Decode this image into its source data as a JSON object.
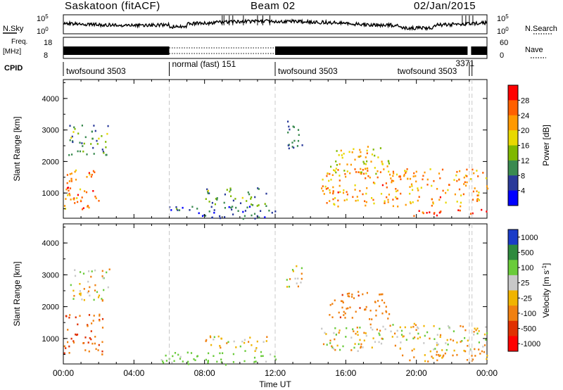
{
  "header": {
    "station": "Saskatoon (fitACF)",
    "beam": "Beam 02",
    "date": "02/Jan/2015"
  },
  "chart_data": [
    {
      "type": "line",
      "name_label": "N.Sky",
      "right_label": "N.Search",
      "left_ticks": [
        "10^5",
        "10^0"
      ],
      "right_ticks": [
        "10^5",
        "10^0"
      ],
      "description_note": ""
    },
    {
      "type": "line",
      "name_label": "Freq. [MHz]",
      "right_label": "Nave",
      "left_ticks": [
        "18",
        "8"
      ],
      "right_ticks": [
        "60",
        "0"
      ]
    },
    {
      "type": "table",
      "name_label": "CPID",
      "segments": [
        {
          "start": "00:00",
          "end": "06:00",
          "label": "twofsound 3503"
        },
        {
          "start": "06:00",
          "end": "12:00",
          "label": "normal (fast) 151"
        },
        {
          "start": "12:00",
          "end": "19:00",
          "label": "twofsound 3503"
        },
        {
          "start": "19:00",
          "end": "23:00",
          "label": "twofsound 3503"
        },
        {
          "start": "22:55",
          "end": "23:15",
          "label": "3371"
        }
      ]
    },
    {
      "type": "heatmap",
      "title": "Power [dB]",
      "ylabel": "Slant Range [km]",
      "xlabel": "Time UT",
      "ylim": [
        200,
        4600
      ],
      "y_ticks": [
        1000,
        2000,
        3000,
        4000
      ],
      "x_ticks": [
        "00:00",
        "04:00",
        "08:00",
        "12:00",
        "16:00",
        "20:00",
        "00:00"
      ],
      "colorbar_ticks": [
        "28",
        "24",
        "20",
        "16",
        "12",
        "8",
        "4"
      ],
      "colorbar_colors": [
        "#ff0000",
        "#ff6000",
        "#ff9900",
        "#e8d800",
        "#7fb800",
        "#3a8a50",
        "#2a3a9a",
        "#0000ff"
      ],
      "regions": [
        {
          "t0": 0.0,
          "t1": 2.2,
          "r0": 500,
          "r1": 1800,
          "level": 24
        },
        {
          "t0": 0.2,
          "t1": 2.6,
          "r0": 2200,
          "r1": 3200,
          "level": 10
        },
        {
          "t0": 5.5,
          "t1": 12.0,
          "r0": 200,
          "r1": 600,
          "level": 6
        },
        {
          "t0": 8.0,
          "t1": 11.5,
          "r0": 600,
          "r1": 1200,
          "level": 10
        },
        {
          "t0": 12.5,
          "t1": 13.5,
          "r0": 2400,
          "r1": 3400,
          "level": 6
        },
        {
          "t0": 14.5,
          "t1": 24.0,
          "r0": 600,
          "r1": 1800,
          "level": 22
        },
        {
          "t0": 15.0,
          "t1": 18.5,
          "r0": 1600,
          "r1": 2500,
          "level": 18
        },
        {
          "t0": 19.0,
          "t1": 24.0,
          "r0": 300,
          "r1": 500,
          "level": 28
        }
      ]
    },
    {
      "type": "heatmap",
      "title": "Velocity [m s^-1]",
      "ylabel": "Slant Range [km]",
      "xlabel": "Time UT",
      "ylim": [
        200,
        4600
      ],
      "y_ticks": [
        1000,
        2000,
        3000,
        4000
      ],
      "x_ticks": [
        "00:00",
        "04:00",
        "08:00",
        "12:00",
        "16:00",
        "20:00",
        "00:00"
      ],
      "colorbar_ticks": [
        "1000",
        "500",
        "100",
        "25",
        "-25",
        "-100",
        "-500",
        "-1000"
      ],
      "colorbar_colors": [
        "#1a3cc8",
        "#2e8a3e",
        "#6acb3a",
        "#c8c8c8",
        "#f0b400",
        "#f08010",
        "#e03000",
        "#ff0000"
      ],
      "regions": [
        {
          "t0": 0.0,
          "t1": 2.2,
          "r0": 500,
          "r1": 1800,
          "level": -300
        },
        {
          "t0": 0.3,
          "t1": 2.6,
          "r0": 2200,
          "r1": 3200,
          "level": 0
        },
        {
          "t0": 5.5,
          "t1": 12.0,
          "r0": 200,
          "r1": 600,
          "level": 150
        },
        {
          "t0": 8.0,
          "t1": 11.5,
          "r0": 600,
          "r1": 1100,
          "level": 0
        },
        {
          "t0": 12.5,
          "t1": 13.5,
          "r0": 2600,
          "r1": 3400,
          "level": 0
        },
        {
          "t0": 14.5,
          "t1": 24.0,
          "r0": 600,
          "r1": 1500,
          "level": 0
        },
        {
          "t0": 15.0,
          "t1": 18.5,
          "r0": 1600,
          "r1": 2500,
          "level": -200
        },
        {
          "t0": 19.0,
          "t1": 24.0,
          "r0": 300,
          "r1": 600,
          "level": -150
        }
      ]
    }
  ]
}
